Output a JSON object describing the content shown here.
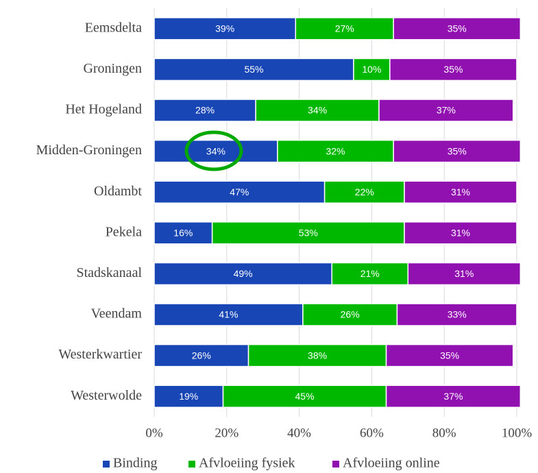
{
  "chart_data": {
    "type": "stacked_bar_horizontal",
    "categories": [
      "Eemsdelta",
      "Groningen",
      "Het Hogeland",
      "Midden-Groningen",
      "Oldambt",
      "Pekela",
      "Stadskanaal",
      "Veendam",
      "Westerkwartier",
      "Westerwolde"
    ],
    "series": [
      {
        "name": "Binding",
        "color": "#1846b4",
        "values": [
          39,
          55,
          28,
          34,
          47,
          16,
          49,
          41,
          26,
          19
        ],
        "value_labels": [
          "39%",
          "55%",
          "28%",
          "34%",
          "47%",
          "16%",
          "49%",
          "41%",
          "26%",
          "19%"
        ]
      },
      {
        "name": "Afvloeiing fysiek",
        "color": "#00b800",
        "values": [
          27,
          10,
          34,
          32,
          22,
          53,
          21,
          26,
          38,
          45
        ],
        "value_labels": [
          "27%",
          "10%",
          "34%",
          "32%",
          "22%",
          "53%",
          "21%",
          "26%",
          "38%",
          "45%"
        ]
      },
      {
        "name": "Afvloeiing online",
        "color": "#9010b0",
        "values": [
          35,
          35,
          37,
          35,
          31,
          31,
          31,
          33,
          35,
          37
        ],
        "value_labels": [
          "35%",
          "35%",
          "37%",
          "35%",
          "31%",
          "31%",
          "31%",
          "33%",
          "35%",
          "37%"
        ]
      }
    ],
    "xlim": [
      0,
      100
    ],
    "xticks": [
      {
        "value": 0,
        "label": "0%"
      },
      {
        "value": 20,
        "label": "20%"
      },
      {
        "value": 40,
        "label": "40%"
      },
      {
        "value": 60,
        "label": "60%"
      },
      {
        "value": 80,
        "label": "80%"
      },
      {
        "value": 100,
        "label": "100%"
      }
    ],
    "grid": true,
    "legend": "bottom"
  }
}
